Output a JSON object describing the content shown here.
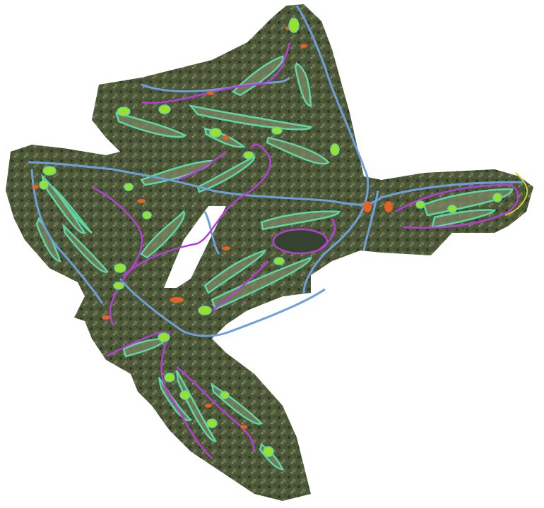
{
  "map": {
    "kind": "golf course aerial overlay",
    "colors": {
      "background": "#ffffff",
      "terrain_dark": "#3e4a32",
      "terrain_mid": "#5f6b45",
      "terrain_light": "#8a8c6a",
      "fairway_fill": "#7d8560",
      "fairway_outline": "#5fd6a6",
      "green": "#9be02a",
      "cart_path": "#b43fd6",
      "road": "#6f9fd8",
      "bunker": "#e0632a",
      "pond": "#3d4a32",
      "hazard_edge": "#c8d52a"
    }
  }
}
